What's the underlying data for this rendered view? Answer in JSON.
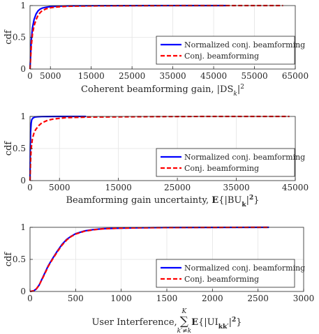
{
  "chart_data": [
    {
      "type": "line",
      "ylabel": "cdf",
      "xlabel_parts": [
        {
          "t": "Coherent beamforming gain, |DS"
        },
        {
          "t": "k",
          "style": "sub-italic"
        },
        {
          "t": "|"
        },
        {
          "t": "2",
          "style": "sup"
        }
      ],
      "xlim": [
        0,
        65000
      ],
      "ylim": [
        0,
        1
      ],
      "xticks": [
        0,
        5000,
        15000,
        25000,
        35000,
        45000,
        55000,
        65000
      ],
      "xtick_labels": [
        "0",
        "5000",
        "15000",
        "25000",
        "35000",
        "45000",
        "55000",
        "65000"
      ],
      "yticks": [
        0,
        0.5,
        1
      ],
      "ytick_labels": [
        "0",
        "0.5",
        "1"
      ],
      "grid": true,
      "legend_position": "lower-right",
      "series": [
        {
          "name": "Normalized conj. beamforming",
          "color": "#0000ff",
          "dash": "solid",
          "x": [
            0,
            300,
            600,
            1000,
            1500,
            2000,
            2500,
            3000,
            4000,
            5000,
            6000,
            8000,
            10000,
            15000,
            20000,
            30000,
            48000
          ],
          "y": [
            0,
            0.45,
            0.65,
            0.78,
            0.87,
            0.92,
            0.945,
            0.96,
            0.975,
            0.983,
            0.988,
            0.993,
            0.996,
            0.998,
            0.999,
            1.0,
            1.0
          ]
        },
        {
          "name": "Conj. beamforming",
          "color": "#ff0000",
          "dash": "dashed",
          "x": [
            0,
            300,
            600,
            1000,
            1500,
            2000,
            2500,
            3000,
            4000,
            5000,
            6000,
            8000,
            10000,
            15000,
            20000,
            30000,
            40000,
            50000,
            62000
          ],
          "y": [
            0,
            0.35,
            0.55,
            0.68,
            0.78,
            0.85,
            0.89,
            0.92,
            0.95,
            0.965,
            0.975,
            0.985,
            0.99,
            0.995,
            0.997,
            0.999,
            1.0,
            1.0,
            1.0
          ]
        }
      ]
    },
    {
      "type": "line",
      "ylabel": "cdf",
      "xlabel_parts": [
        {
          "t": "Beamforming gain uncertainty, "
        },
        {
          "t": "E",
          "style": "bold"
        },
        {
          "t": "{|BU"
        },
        {
          "t": "k",
          "style": "sub-bold"
        },
        {
          "t": "|"
        },
        {
          "t": "2",
          "style": "sup-bold"
        },
        {
          "t": "}"
        }
      ],
      "xlim": [
        0,
        45000
      ],
      "ylim": [
        0,
        1
      ],
      "xticks": [
        0,
        5000,
        15000,
        25000,
        35000,
        45000
      ],
      "xtick_labels": [
        "0",
        "5000",
        "15000",
        "25000",
        "35000",
        "45000"
      ],
      "yticks": [
        0,
        0.5,
        1
      ],
      "ytick_labels": [
        "0",
        "0.5",
        "1"
      ],
      "grid": true,
      "legend_position": "lower-right",
      "series": [
        {
          "name": "Normalized conj. beamforming",
          "color": "#0000ff",
          "dash": "solid",
          "x": [
            0,
            50,
            100,
            200,
            300,
            500,
            800,
            1200,
            2000,
            3000,
            5000,
            9500
          ],
          "y": [
            0,
            0.5,
            0.75,
            0.9,
            0.95,
            0.975,
            0.99,
            0.995,
            0.998,
            0.999,
            1.0,
            1.0
          ]
        },
        {
          "name": "Conj. beamforming",
          "color": "#ff0000",
          "dash": "dashed",
          "x": [
            0,
            100,
            200,
            400,
            700,
            1000,
            1500,
            2000,
            3000,
            4000,
            6000,
            10000,
            20000,
            30000,
            44000
          ],
          "y": [
            0,
            0.3,
            0.5,
            0.65,
            0.75,
            0.8,
            0.86,
            0.9,
            0.94,
            0.96,
            0.98,
            0.99,
            0.997,
            1.0,
            1.0
          ]
        }
      ]
    },
    {
      "type": "line",
      "ylabel": "cdf",
      "xlabel_parts": [
        {
          "t": "User Interference, "
        },
        {
          "t": "∑",
          "style": "sum"
        },
        {
          "t": " "
        },
        {
          "t": "E",
          "style": "bold"
        },
        {
          "t": "{|UI"
        },
        {
          "t": "kk′",
          "style": "sub-bold"
        },
        {
          "t": "|"
        },
        {
          "t": "2",
          "style": "sup-bold"
        },
        {
          "t": "}"
        }
      ],
      "sum_upper": "K",
      "sum_lower": "k′≠k",
      "xlim": [
        0,
        3000
      ],
      "ylim": [
        0,
        1
      ],
      "xticks": [
        0,
        500,
        1000,
        1500,
        2000,
        2500,
        3000
      ],
      "xtick_labels": [
        "0",
        "500",
        "1000",
        "1500",
        "2000",
        "2500",
        "3000"
      ],
      "yticks": [
        0,
        0.5,
        1
      ],
      "ytick_labels": [
        "0",
        "0.5",
        "1"
      ],
      "grid": true,
      "legend_position": "lower-right",
      "series": [
        {
          "name": "Normalized conj. beamforming",
          "color": "#0000ff",
          "dash": "solid",
          "x": [
            0,
            40,
            70,
            100,
            150,
            200,
            250,
            300,
            350,
            400,
            450,
            500,
            600,
            700,
            800,
            1000,
            1200,
            1500,
            2000,
            2620
          ],
          "y": [
            0,
            0.01,
            0.04,
            0.1,
            0.25,
            0.4,
            0.52,
            0.63,
            0.73,
            0.81,
            0.86,
            0.9,
            0.945,
            0.965,
            0.978,
            0.988,
            0.993,
            0.997,
            0.999,
            1.0
          ]
        },
        {
          "name": "Conj. beamforming",
          "color": "#ff0000",
          "dash": "dashed",
          "x": [
            0,
            40,
            70,
            100,
            150,
            200,
            250,
            300,
            350,
            400,
            450,
            500,
            600,
            700,
            800,
            1000,
            1200,
            1500,
            2000,
            2620
          ],
          "y": [
            0,
            0.01,
            0.04,
            0.1,
            0.24,
            0.39,
            0.51,
            0.62,
            0.72,
            0.8,
            0.855,
            0.895,
            0.94,
            0.962,
            0.976,
            0.987,
            0.992,
            0.996,
            0.999,
            1.0
          ]
        }
      ]
    }
  ]
}
